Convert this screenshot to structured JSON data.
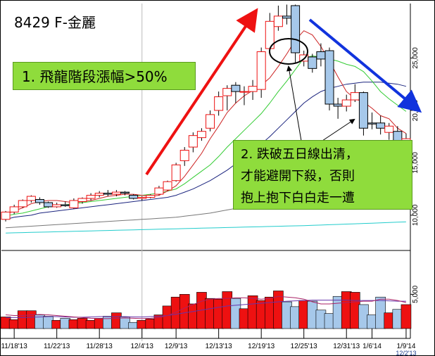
{
  "title": "8429 F-金麗",
  "annotations": {
    "note1": "1. 飛龍階段漲幅>50%",
    "note2_lines": [
      "2. 跌破五日線出清，",
      "才能避開下殺，否則",
      "抱上抱下白白走一遭"
    ]
  },
  "colors": {
    "up": "#ee1111",
    "down": "#a6c8ea",
    "ma5": "#cc2222",
    "ma10": "#33cc33",
    "ma20": "#1a237e",
    "ma60": "#777777",
    "ma120": "#22cccc",
    "vol_ma1": "#aa2266",
    "vol_ma2": "#6633aa",
    "arrow_up": "#ee1111",
    "arrow_down": "#1133dd",
    "ellipse": "#000000",
    "box": "#8fdc3c"
  },
  "chart_data": {
    "type": "candlestick",
    "x_ticks": [
      {
        "i": 1,
        "label": "11/18'13"
      },
      {
        "i": 6,
        "label": "11/22'13"
      },
      {
        "i": 11,
        "label": "11/28'13"
      },
      {
        "i": 16,
        "label": "12/4'13"
      },
      {
        "i": 20,
        "label": "12/9'13"
      },
      {
        "i": 25,
        "label": "12/13'13"
      },
      {
        "i": 30,
        "label": "12/19'13"
      },
      {
        "i": 35,
        "label": "12/25'13"
      },
      {
        "i": 40,
        "label": "12/31'13"
      },
      {
        "i": 43,
        "label": "1/6'14"
      },
      {
        "i": 47,
        "label": "1/9'14"
      }
    ],
    "date_under_last": "12/2'13",
    "price_axis": {
      "ticks": [
        10000,
        15000,
        20000,
        25000
      ],
      "labels": [
        "10,000",
        "15,000",
        "20,000",
        "25,000"
      ],
      "ylim": [
        6700,
        30200
      ]
    },
    "volume_axis": {
      "ticks": [
        5000
      ],
      "labels": [
        "5,000"
      ],
      "ylim": [
        0,
        11200
      ]
    },
    "candles": [
      [
        9600,
        10300,
        9400,
        10400
      ],
      [
        10300,
        10800,
        10100,
        11000
      ],
      [
        10800,
        11400,
        10700,
        11500
      ],
      [
        11400,
        11800,
        11200,
        11900
      ],
      [
        11500,
        11200,
        11000,
        11700
      ],
      [
        11200,
        10800,
        10700,
        11300
      ],
      [
        10800,
        11000,
        10700,
        11200
      ],
      [
        11000,
        10900,
        10800,
        11300
      ],
      [
        10700,
        11400,
        10600,
        11600
      ],
      [
        11300,
        11600,
        11100,
        11700
      ],
      [
        11600,
        11900,
        11400,
        12100
      ],
      [
        11900,
        12100,
        11700,
        12300
      ],
      [
        12100,
        12000,
        11800,
        12400
      ],
      [
        12000,
        12200,
        11800,
        12400
      ],
      [
        12200,
        12100,
        11900,
        12300
      ],
      [
        11900,
        11600,
        11500,
        12000
      ],
      [
        11600,
        11700,
        11400,
        11800
      ],
      [
        11700,
        11900,
        11600,
        12000
      ],
      [
        12000,
        12600,
        11900,
        12800
      ],
      [
        12400,
        13200,
        12300,
        13300
      ],
      [
        13300,
        14800,
        13200,
        15000
      ],
      [
        15200,
        16200,
        14700,
        16500
      ],
      [
        16500,
        17600,
        16000,
        17900
      ],
      [
        17400,
        18000,
        17100,
        18300
      ],
      [
        18300,
        19600,
        18000,
        20000
      ],
      [
        20000,
        21300,
        19500,
        21800
      ],
      [
        21400,
        22100,
        20000,
        22400
      ],
      [
        22400,
        21800,
        20700,
        22700
      ],
      [
        21800,
        21800,
        20500,
        22300
      ],
      [
        21800,
        22300,
        21000,
        22900
      ],
      [
        22000,
        25600,
        21200,
        26000
      ],
      [
        25900,
        28500,
        25400,
        29300
      ],
      [
        28000,
        29000,
        27600,
        30000
      ],
      [
        29000,
        28800,
        28200,
        30100
      ],
      [
        30000,
        25500,
        24500,
        30100
      ],
      [
        24700,
        25300,
        24200,
        25700
      ],
      [
        25100,
        24000,
        23600,
        25400
      ],
      [
        25600,
        24900,
        24200,
        26400
      ],
      [
        25700,
        20600,
        20000,
        26000
      ],
      [
        20600,
        20400,
        19200,
        21200
      ],
      [
        20400,
        21000,
        19900,
        21500
      ],
      [
        21000,
        21700,
        20800,
        22500
      ],
      [
        21700,
        18300,
        17600,
        21800
      ],
      [
        18800,
        18700,
        18200,
        19800
      ],
      [
        18800,
        18300,
        17700,
        19500
      ],
      [
        17900,
        18500,
        17200,
        18800
      ],
      [
        18000,
        16600,
        16400,
        18500
      ],
      [
        16700,
        17300,
        16400,
        17800
      ]
    ],
    "volumes": [
      1700,
      1300,
      2600,
      2600,
      2000,
      1800,
      1200,
      1500,
      1300,
      1500,
      1200,
      1500,
      1800,
      2300,
      1700,
      900,
      1200,
      1400,
      2000,
      3300,
      4600,
      5000,
      3600,
      5300,
      4400,
      4300,
      5400,
      4400,
      2900,
      4800,
      4100,
      4600,
      5500,
      3900,
      3200,
      4100,
      4000,
      2700,
      2200,
      4700,
      5400,
      5300,
      3500,
      2000,
      4600,
      2300,
      2800,
      3500
    ],
    "ma5": [
      10100,
      10400,
      10700,
      11100,
      11300,
      11400,
      11400,
      11300,
      11200,
      11300,
      11400,
      11600,
      11800,
      11900,
      12000,
      12000,
      11900,
      11800,
      11900,
      12300,
      12800,
      13700,
      14800,
      15900,
      17300,
      18500,
      19800,
      20700,
      21400,
      21900,
      22400,
      23100,
      24200,
      25400,
      26700,
      27600,
      27200,
      26100,
      24700,
      23200,
      21800,
      21100,
      20800,
      20200,
      19500,
      19200,
      18300,
      17800
    ],
    "ma10": [
      9900,
      10100,
      10200,
      10400,
      10600,
      10800,
      10900,
      11000,
      11100,
      11200,
      11300,
      11400,
      11500,
      11600,
      11700,
      11800,
      11900,
      12000,
      12100,
      12300,
      12500,
      13000,
      13600,
      14200,
      14800,
      15600,
      16500,
      17300,
      18100,
      18900,
      19700,
      20700,
      21800,
      22800,
      23900,
      25000,
      25200,
      25100,
      24900,
      24700,
      24400,
      24200,
      23700,
      22800,
      21800,
      21100,
      20500,
      19900
    ],
    "ma20": [
      9600,
      9800,
      9900,
      10000,
      10200,
      10300,
      10400,
      10500,
      10600,
      10700,
      10800,
      10900,
      11000,
      11100,
      11200,
      11300,
      11400,
      11500,
      11600,
      11700,
      11900,
      12200,
      12500,
      12900,
      13300,
      13800,
      14300,
      14900,
      15500,
      16100,
      16800,
      17500,
      18300,
      19100,
      19900,
      20700,
      21300,
      21800,
      22100,
      22300,
      22500,
      22600,
      22700,
      22700,
      22700,
      22600,
      22500,
      22300
    ],
    "ma60": [
      8800,
      8850,
      8900,
      8950,
      9000,
      9050,
      9100,
      9150,
      9200,
      9250,
      9300,
      9350,
      9400,
      9450,
      9500,
      9550,
      9600,
      9650,
      9700,
      9750,
      9800,
      9900,
      10000,
      10100,
      10200,
      10350,
      10500,
      10650,
      10800,
      10950,
      11100,
      11300,
      11500,
      11700,
      11900,
      12100,
      12200,
      12350,
      12500,
      12650,
      12800,
      12950,
      13100,
      13200,
      13300,
      13400,
      13500,
      13600
    ],
    "ma120": [
      8300,
      8320,
      8340,
      8360,
      8380,
      8400,
      8420,
      8440,
      8460,
      8480,
      8500,
      8520,
      8540,
      8560,
      8580,
      8600,
      8620,
      8640,
      8660,
      8680,
      8700,
      8720,
      8740,
      8760,
      8780,
      8800,
      8820,
      8840,
      8860,
      8880,
      8900,
      8920,
      8940,
      8960,
      8980,
      9000,
      9030,
      9060,
      9090,
      9120,
      9150,
      9180,
      9210,
      9240,
      9270,
      9300,
      9330,
      9360
    ],
    "vol_ma1": [
      2000,
      1900,
      1900,
      2000,
      2050,
      2000,
      1900,
      1800,
      1700,
      1600,
      1500,
      1450,
      1450,
      1500,
      1550,
      1500,
      1450,
      1500,
      1600,
      1900,
      2400,
      3000,
      3500,
      4000,
      4300,
      4400,
      4400,
      4500,
      4500,
      4400,
      4300,
      4400,
      4700,
      4600,
      4500,
      4300,
      3900,
      3600,
      3600,
      3700,
      3800,
      3900,
      4000,
      4000,
      4300,
      4300,
      4100,
      3800
    ],
    "vol_ma2": [
      1600,
      1600,
      1600,
      1650,
      1700,
      1750,
      1750,
      1700,
      1650,
      1650,
      1700,
      1750,
      1750,
      1750,
      1750,
      1700,
      1700,
      1750,
      1800,
      1900,
      2100,
      2300,
      2500,
      2700,
      2900,
      3100,
      3300,
      3400,
      3500,
      3600,
      3700,
      3800,
      3900,
      4000,
      4050,
      4100,
      4150,
      4150,
      4150,
      4150,
      4150,
      4100,
      4100,
      4100,
      4100,
      4050,
      4000,
      4000
    ]
  }
}
